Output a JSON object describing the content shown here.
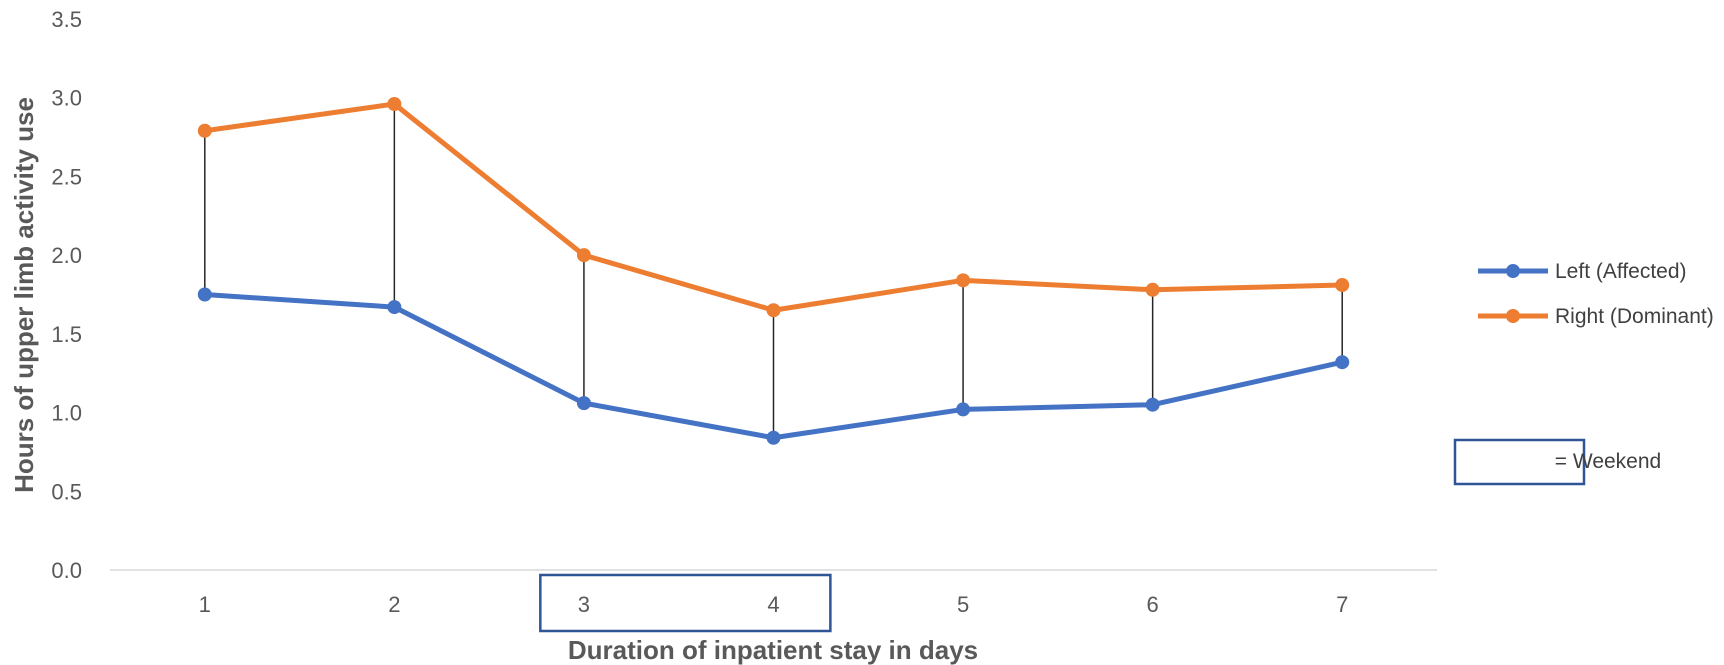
{
  "chart_data": {
    "type": "line",
    "title": "",
    "xlabel": "Duration of inpatient stay in days",
    "ylabel": "Hours of upper limb activity use",
    "categories": [
      "1",
      "2",
      "3",
      "4",
      "5",
      "6",
      "7"
    ],
    "ylim": [
      0,
      3.5
    ],
    "yticks": [
      "0.0",
      "0.5",
      "1.0",
      "1.5",
      "2.0",
      "2.5",
      "3.0",
      "3.5"
    ],
    "grid": false,
    "legend_position": "right",
    "drop_lines": true,
    "series": [
      {
        "name": "Left (Affected)",
        "color": "#4472C4",
        "values": [
          1.75,
          1.67,
          1.06,
          0.84,
          1.02,
          1.05,
          1.32
        ]
      },
      {
        "name": "Right (Dominant)",
        "color": "#ED7D31",
        "values": [
          2.79,
          2.96,
          2.0,
          1.65,
          1.84,
          1.78,
          1.81
        ]
      }
    ],
    "weekend_days": [
      "3",
      "4"
    ],
    "weekend_legend_label": "= Weekend",
    "weekend_box_color": "#2F5597",
    "axis_color": "#D9D9D9",
    "drop_line_color": "#262626"
  }
}
